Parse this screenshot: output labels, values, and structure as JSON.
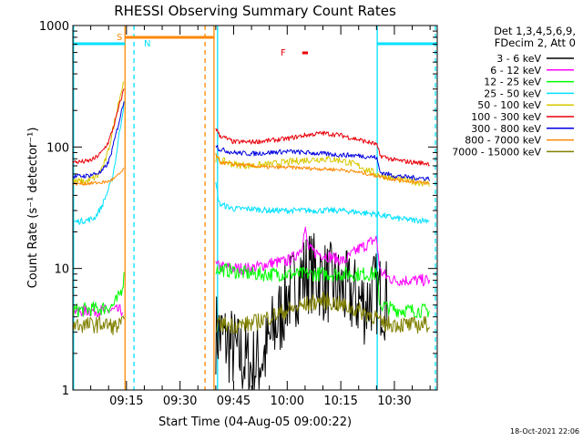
{
  "chart_data": {
    "type": "line",
    "title": "RHESSI Observing Summary Count Rates",
    "xlabel": "Start Time (04-Aug-05 09:00:22)",
    "ylabel": "Count Rate (s⁻¹ detector⁻¹)",
    "yscale": "log",
    "ylim": [
      1,
      1000
    ],
    "xlim_minutes": [
      0,
      102
    ],
    "xtick_labels": [
      "09:15",
      "09:30",
      "09:45",
      "10:00",
      "10:15",
      "10:30"
    ],
    "ytick_labels": [
      "1",
      "10",
      "100",
      "1000"
    ],
    "legend_header": [
      "Det 1,3,4,5,6,9,",
      "FDecim 2, Att 0"
    ],
    "legend_position": "right",
    "footer_date": "18-Oct-2021 22:06",
    "flags": [
      {
        "label": "S",
        "color": "#ff8800",
        "start_min": 14.6,
        "end_min": 39.5
      },
      {
        "label": "N",
        "color": "#00e0ff",
        "start_min": 0,
        "end_min": 14.6
      },
      {
        "label": "N",
        "color": "#00e0ff",
        "start_min": 85.2,
        "end_min": 102
      },
      {
        "label": "F",
        "color": "#e8000a",
        "start_min": 64.2,
        "end_min": 65.8
      }
    ],
    "markers": [
      {
        "color": "#00e0ff",
        "style": "solid",
        "minute": 0.2
      },
      {
        "color": "#ff8800",
        "style": "solid",
        "minute": 14.6
      },
      {
        "color": "#00e0ff",
        "style": "dashed",
        "minute": 17.1
      },
      {
        "color": "#ff8800",
        "style": "dashed",
        "minute": 37.0
      },
      {
        "color": "#ff8800",
        "style": "solid",
        "minute": 39.5
      },
      {
        "color": "#00e0ff",
        "style": "solid",
        "minute": 40.5
      },
      {
        "color": "#00e0ff",
        "style": "solid",
        "minute": 85.2
      },
      {
        "color": "#00e0ff",
        "style": "dashed",
        "minute": 101.5
      }
    ],
    "series": [
      {
        "name": "3 - 6 keV",
        "color": "#000000",
        "segments": [
          {
            "x": [],
            "y": []
          },
          {
            "x": [
              40,
              43,
              46,
              50,
              54,
              56,
              58,
              60,
              62,
              64,
              66,
              68,
              70,
              72,
              74,
              76,
              78,
              80,
              82,
              84,
              86,
              88
            ],
            "y": [
              3.0,
              2.5,
              2.0,
              1.5,
              2.0,
              3.0,
              4.0,
              6.0,
              7.0,
              8.5,
              9.5,
              9.0,
              8.0,
              7.5,
              7.0,
              6.5,
              6.0,
              5.5,
              5.0,
              6.5,
              6.0,
              5.5
            ]
          }
        ]
      },
      {
        "name": "6 - 12 keV",
        "color": "#ff00ff",
        "segments": [
          {
            "x": [
              0,
              14
            ],
            "y": [
              4.5,
              4.5
            ]
          },
          {
            "x": [
              40,
              45,
              50,
              55,
              60,
              62,
              64,
              65,
              66,
              68,
              70,
              72,
              74,
              76,
              78,
              80,
              82,
              84,
              85,
              86,
              88,
              90,
              95,
              100
            ],
            "y": [
              10.5,
              10.0,
              10.0,
              11.0,
              11.5,
              12.5,
              15.0,
              21.0,
              14.5,
              13.5,
              13.0,
              12.5,
              12.0,
              11.5,
              13.0,
              14.5,
              15.5,
              17.0,
              17.5,
              9.5,
              8.5,
              8.0,
              8.0,
              8.0
            ]
          }
        ]
      },
      {
        "name": "12 - 25 keV",
        "color": "#00ff00",
        "segments": [
          {
            "x": [
              0,
              4,
              8,
              11,
              12.5,
              13.5,
              14.3
            ],
            "y": [
              4.5,
              4.6,
              4.7,
              4.9,
              5.5,
              6.5,
              8.5
            ]
          },
          {
            "x": [
              40,
              45,
              50,
              55,
              60,
              65,
              70,
              75,
              80,
              85,
              86,
              90,
              95,
              100
            ],
            "y": [
              10.0,
              9.5,
              9.0,
              9.0,
              9.0,
              9.0,
              9.0,
              9.0,
              9.0,
              9.0,
              5.0,
              4.6,
              4.5,
              4.5
            ]
          }
        ]
      },
      {
        "name": "25 - 50 keV",
        "color": "#00e0ff",
        "segments": [
          {
            "x": [
              0,
              4,
              6,
              8,
              10,
              11,
              12,
              13,
              14,
              14.5
            ],
            "y": [
              24,
              25,
              26,
              32,
              45,
              55,
              80,
              130,
              200,
              250
            ]
          },
          {
            "x": [
              40,
              41,
              45,
              50,
              55,
              60,
              65,
              70,
              75,
              80,
              85,
              90,
              95,
              100
            ],
            "y": [
              50,
              34,
              31,
              31,
              30,
              30,
              30,
              30,
              30,
              29,
              28,
              26,
              25,
              25
            ]
          }
        ]
      },
      {
        "name": "50 - 100 keV",
        "color": "#d8c800",
        "segments": [
          {
            "x": [
              0,
              4,
              7,
              9,
              10,
              11,
              12,
              13,
              14,
              14.4
            ],
            "y": [
              52,
              52,
              58,
              75,
              95,
              130,
              180,
              250,
              320,
              370
            ]
          },
          {
            "x": [
              40,
              41,
              45,
              50,
              55,
              60,
              65,
              70,
              75,
              80,
              85,
              90,
              95,
              100
            ],
            "y": [
              80,
              78,
              72,
              70,
              72,
              75,
              78,
              80,
              78,
              70,
              60,
              55,
              52,
              50
            ]
          }
        ]
      },
      {
        "name": "100 - 300 keV",
        "color": "#e8000a",
        "segments": [
          {
            "x": [
              0,
              4,
              6,
              8,
              10,
              11,
              12,
              13,
              14,
              14.5
            ],
            "y": [
              75,
              76,
              80,
              90,
              110,
              135,
              170,
              220,
              280,
              320
            ]
          },
          {
            "x": [
              40,
              41,
              45,
              50,
              55,
              60,
              65,
              70,
              75,
              80,
              85,
              86,
              90,
              95,
              100
            ],
            "y": [
              145,
              125,
              110,
              110,
              113,
              117,
              125,
              130,
              125,
              115,
              105,
              85,
              78,
              75,
              73
            ]
          }
        ]
      },
      {
        "name": "300 - 800 keV",
        "color": "#0000e0",
        "segments": [
          {
            "x": [
              0,
              4,
              8,
              10,
              11,
              12,
              13,
              14,
              14.5
            ],
            "y": [
              57,
              58,
              62,
              75,
              95,
              125,
              165,
              220,
              260
            ]
          },
          {
            "x": [
              40,
              41,
              45,
              50,
              55,
              60,
              65,
              70,
              75,
              80,
              85,
              86,
              90,
              95,
              100
            ],
            "y": [
              105,
              96,
              90,
              88,
              90,
              92,
              90,
              88,
              86,
              85,
              82,
              62,
              58,
              56,
              55
            ]
          }
        ]
      },
      {
        "name": "800 - 7000 keV",
        "color": "#ff8800",
        "segments": [
          {
            "x": [
              0,
              4,
              8,
              10,
              12,
              13,
              14,
              14.4
            ],
            "y": [
              50,
              50,
              51,
              52,
              56,
              60,
              64,
              66
            ]
          },
          {
            "x": [
              40,
              41,
              45,
              50,
              55,
              60,
              65,
              70,
              75,
              80,
              85,
              90,
              95,
              100
            ],
            "y": [
              88,
              75,
              72,
              70,
              68,
              68,
              67,
              66,
              65,
              62,
              58,
              54,
              52,
              50
            ]
          }
        ]
      },
      {
        "name": "7000 - 15000 keV",
        "color": "#808000",
        "segments": [
          {
            "x": [
              0,
              4,
              8,
              12,
              14.3
            ],
            "y": [
              3.5,
              3.4,
              3.5,
              3.3,
              3.5
            ]
          },
          {
            "x": [
              40,
              45,
              50,
              55,
              60,
              65,
              70,
              75,
              80,
              85,
              86,
              90,
              95,
              100
            ],
            "y": [
              3.5,
              3.4,
              3.5,
              4.0,
              4.5,
              5.0,
              5.5,
              5.0,
              4.5,
              4.0,
              3.5,
              3.5,
              3.4,
              3.5
            ]
          }
        ]
      }
    ]
  }
}
